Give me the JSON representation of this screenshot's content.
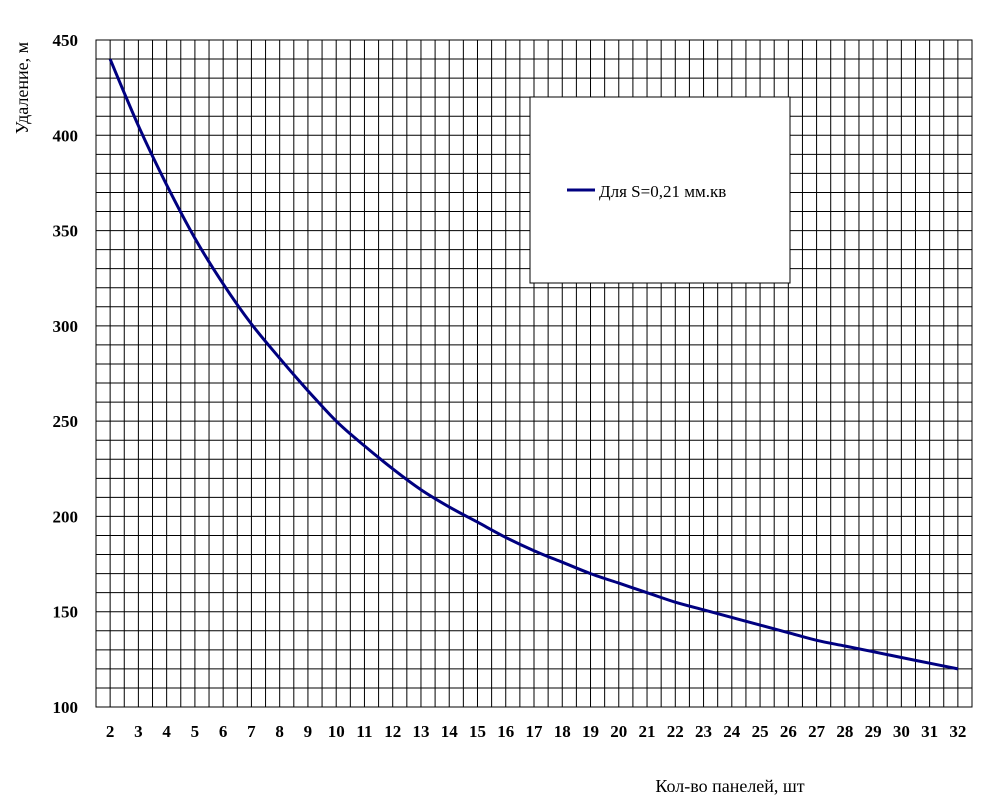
{
  "chart_data": {
    "type": "line",
    "title": "",
    "xlabel": "Кол-во панелей,  шт",
    "ylabel": "Удаление, м",
    "xlim": [
      1.5,
      32.5
    ],
    "ylim": [
      100,
      450
    ],
    "y_ticks": [
      100,
      150,
      200,
      250,
      300,
      350,
      400,
      450
    ],
    "x_ticks": [
      2,
      3,
      4,
      5,
      6,
      7,
      8,
      9,
      10,
      11,
      12,
      13,
      14,
      15,
      16,
      17,
      18,
      19,
      20,
      21,
      22,
      23,
      24,
      25,
      26,
      27,
      28,
      29,
      30,
      31,
      32
    ],
    "grid": true,
    "legend_position": "top-right",
    "series": [
      {
        "name": "Для S=0,21 мм.кв",
        "color": "#000080",
        "x": [
          2,
          3,
          4,
          5,
          6,
          7,
          8,
          9,
          10,
          11,
          12,
          13,
          14,
          15,
          16,
          17,
          18,
          19,
          20,
          21,
          22,
          23,
          24,
          25,
          26,
          27,
          28,
          29,
          30,
          31,
          32
        ],
        "values": [
          440,
          405,
          374,
          346,
          322,
          301,
          283,
          266,
          250,
          237,
          225,
          214,
          205,
          197,
          189,
          182,
          176,
          170,
          165,
          160,
          155,
          151,
          147,
          143,
          139,
          135,
          132,
          129,
          126,
          123,
          120
        ]
      }
    ]
  }
}
